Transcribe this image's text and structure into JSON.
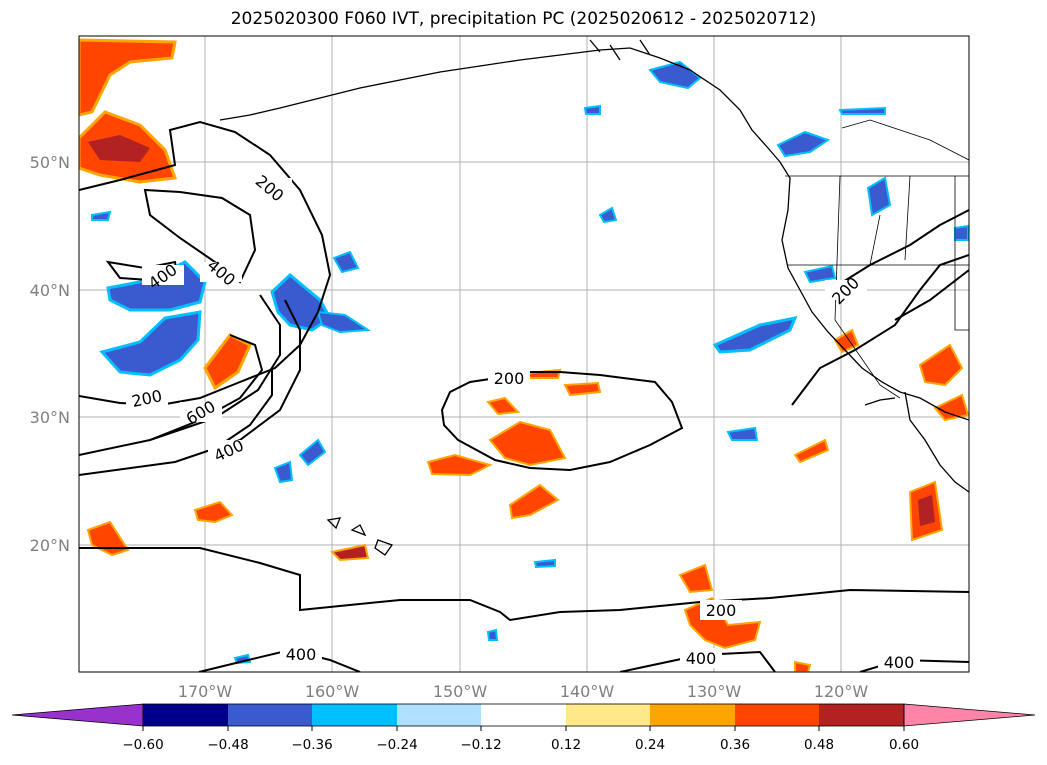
{
  "title": "2025020300 F060 IVT, precipitation PC (2025020612 - 2025020712)",
  "lat_ticks": [
    "50°N",
    "40°N",
    "30°N",
    "20°N"
  ],
  "lon_ticks": [
    "170°W",
    "160°W",
    "150°W",
    "140°W",
    "130°W",
    "120°W"
  ],
  "contour_labels": [
    "200",
    "400",
    "400",
    "200",
    "600",
    "400",
    "200",
    "200",
    "400",
    "400",
    "400"
  ],
  "colorbar": {
    "colors": [
      "#9932cc",
      "#00008b",
      "#3a5ad0",
      "#00bfff",
      "#b0e0ff",
      "#ffffff",
      "#ffe88a",
      "#ffa500",
      "#ff4500",
      "#b22222",
      "#ff85a8"
    ],
    "ticks": [
      "−0.60",
      "−0.48",
      "−0.36",
      "−0.24",
      "−0.12",
      "0.12",
      "0.24",
      "0.36",
      "0.48",
      "0.60"
    ]
  }
}
